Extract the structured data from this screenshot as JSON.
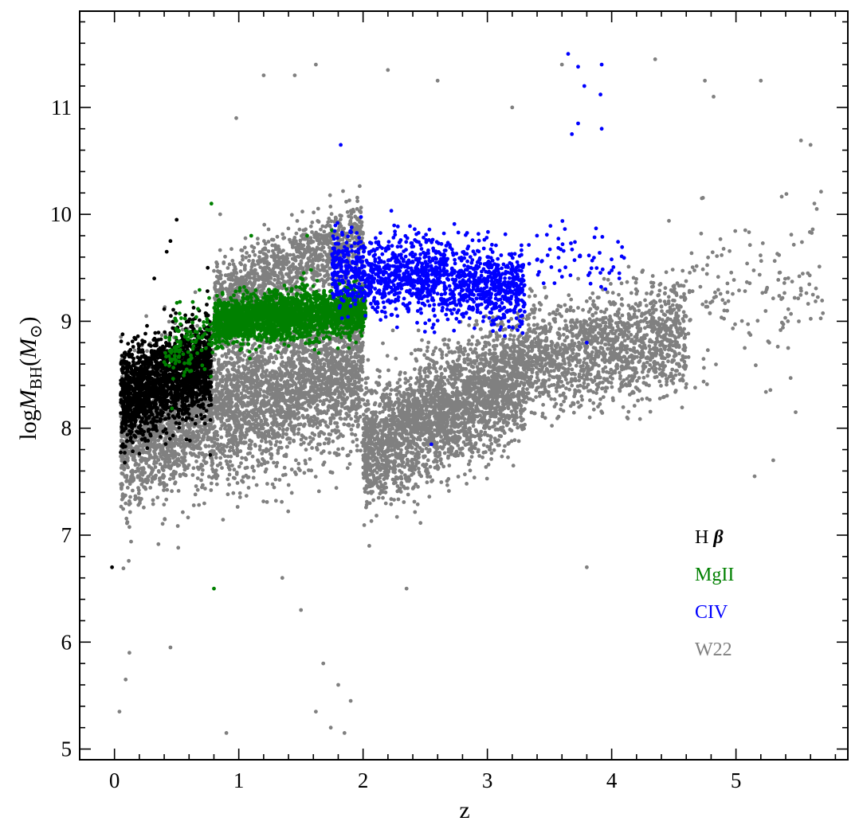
{
  "chart_data": {
    "type": "scatter",
    "title": "",
    "xlabel": "z",
    "ylabel": {
      "prefix": "log",
      "main": "M",
      "sub": "BH",
      "open": "(",
      "unit": "M",
      "unit_sub": "⊙",
      "close": ")"
    },
    "xlim": [
      -0.28,
      5.9
    ],
    "ylim": [
      4.9,
      11.9
    ],
    "xticks": [
      0,
      1,
      2,
      3,
      4,
      5
    ],
    "yticks": [
      5,
      6,
      7,
      8,
      9,
      10,
      11
    ],
    "grid": false,
    "legend_placement": "lower-right",
    "series": [
      {
        "name": "W22",
        "label": "W22",
        "color": "#808080",
        "regions": [
          {
            "x": [
              0.05,
              2.0
            ],
            "y_center": [
              7.9,
              8.6
            ],
            "y_spread": 0.7,
            "weight": 4200
          },
          {
            "x": [
              2.0,
              3.3
            ],
            "y_center": [
              7.8,
              8.5
            ],
            "y_spread": 0.55,
            "weight": 2800
          },
          {
            "x": [
              3.3,
              4.6
            ],
            "y_center": [
              8.6,
              8.9
            ],
            "y_spread": 0.5,
            "weight": 1500
          },
          {
            "x": [
              0.8,
              2.0
            ],
            "y_center": [
              9.2,
              9.8
            ],
            "y_spread": 0.35,
            "weight": 1200
          },
          {
            "x": [
              4.6,
              5.7
            ],
            "y_center": [
              9.1,
              9.4
            ],
            "y_spread": 0.7,
            "weight": 150
          }
        ],
        "outliers": [
          [
            0.04,
            5.35
          ],
          [
            0.09,
            5.65
          ],
          [
            0.12,
            5.9
          ],
          [
            0.9,
            5.15
          ],
          [
            1.5,
            6.3
          ],
          [
            1.62,
            5.35
          ],
          [
            1.74,
            5.2
          ],
          [
            1.85,
            5.15
          ],
          [
            1.9,
            5.45
          ],
          [
            1.8,
            5.6
          ],
          [
            1.68,
            5.8
          ],
          [
            2.05,
            6.9
          ],
          [
            0.45,
            5.95
          ],
          [
            1.35,
            6.6
          ],
          [
            1.2,
            11.3
          ],
          [
            1.45,
            11.3
          ],
          [
            1.62,
            11.4
          ],
          [
            2.2,
            11.35
          ],
          [
            2.6,
            11.25
          ],
          [
            3.2,
            11.0
          ],
          [
            3.6,
            11.4
          ],
          [
            4.35,
            11.45
          ],
          [
            4.75,
            11.25
          ],
          [
            5.2,
            11.25
          ],
          [
            5.6,
            10.65
          ],
          [
            5.65,
            10.05
          ],
          [
            5.42,
            8.75
          ],
          [
            5.48,
            8.15
          ],
          [
            5.3,
            7.7
          ],
          [
            5.15,
            7.55
          ],
          [
            3.8,
            6.7
          ],
          [
            4.82,
            11.1
          ],
          [
            2.35,
            6.5
          ],
          [
            0.98,
            10.9
          ],
          [
            0.85,
            10.0
          ]
        ]
      },
      {
        "name": "H β",
        "label": "H β",
        "color": "#000000",
        "regions": [
          {
            "x": [
              0.05,
              0.78
            ],
            "y_center": [
              8.3,
              8.6
            ],
            "y_spread": 0.42,
            "weight": 1800
          }
        ],
        "outliers": [
          [
            -0.02,
            6.7
          ],
          [
            0.45,
            9.75
          ],
          [
            0.5,
            9.95
          ],
          [
            0.42,
            9.65
          ],
          [
            0.32,
            9.4
          ],
          [
            0.75,
            9.5
          ],
          [
            0.77,
            7.75
          ]
        ]
      },
      {
        "name": "MgII",
        "label": "MgII",
        "color": "#008000",
        "regions": [
          {
            "x": [
              0.8,
              2.02
            ],
            "y_center": [
              9.0,
              9.1
            ],
            "y_spread": 0.22,
            "weight": 2300
          },
          {
            "x": [
              0.4,
              0.8
            ],
            "y_center": [
              8.7,
              8.9
            ],
            "y_spread": 0.35,
            "weight": 120
          }
        ],
        "outliers": [
          [
            0.78,
            10.1
          ],
          [
            1.1,
            9.8
          ],
          [
            0.8,
            6.5
          ],
          [
            1.55,
            9.8
          ],
          [
            1.75,
            9.85
          ]
        ]
      },
      {
        "name": "CIV",
        "label": "CIV",
        "color": "#0000ff",
        "regions": [
          {
            "x": [
              1.75,
              3.3
            ],
            "y_center": [
              9.5,
              9.3
            ],
            "y_spread": 0.36,
            "weight": 1500
          },
          {
            "x": [
              3.3,
              4.1
            ],
            "y_center": [
              9.6,
              9.6
            ],
            "y_spread": 0.3,
            "weight": 60
          }
        ],
        "outliers": [
          [
            3.65,
            11.5
          ],
          [
            3.73,
            11.38
          ],
          [
            3.92,
            11.4
          ],
          [
            3.78,
            11.2
          ],
          [
            3.91,
            11.12
          ],
          [
            3.73,
            10.85
          ],
          [
            3.92,
            10.8
          ],
          [
            3.68,
            10.75
          ],
          [
            2.55,
            7.85
          ],
          [
            1.82,
            10.65
          ],
          [
            3.8,
            8.8
          ],
          [
            3.95,
            9.3
          ]
        ]
      }
    ]
  }
}
